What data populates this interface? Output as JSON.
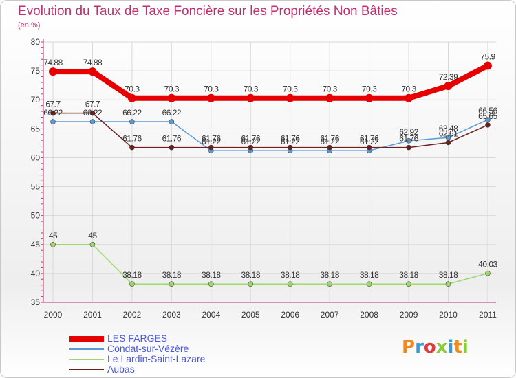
{
  "header": {
    "title": "Evolution du Taux de Taxe Foncière sur les Propriétés Non Bâties",
    "unit": "(en %)"
  },
  "logo": {
    "text": "Proxiti",
    "colors": [
      "#f08a1c",
      "#3a9ad8",
      "#e23a3a",
      "#8acb3a",
      "#3a9ad8",
      "#f08a1c",
      "#8acb3a"
    ]
  },
  "colors": {
    "title": "#c03070",
    "legend_text": "#4a5ad8",
    "axis": "#c03070",
    "grid": "#d8d8d8"
  },
  "chart_data": {
    "type": "line",
    "x": [
      "2000",
      "2001",
      "2002",
      "2003",
      "2004",
      "2005",
      "2006",
      "2007",
      "2008",
      "2009",
      "2010",
      "2011"
    ],
    "ylim": [
      35,
      80
    ],
    "yticks": [
      35,
      40,
      45,
      50,
      55,
      60,
      65,
      70,
      75,
      80
    ],
    "grid": true,
    "legend_position": "bottom-left",
    "series": [
      {
        "name": "LES FARGES",
        "color": "#e60000",
        "values": [
          74.88,
          74.88,
          70.3,
          70.3,
          70.3,
          70.3,
          70.3,
          70.3,
          70.3,
          70.3,
          72.39,
          75.9
        ],
        "labels": [
          "74.88",
          "74.88",
          "70.3",
          "70.3",
          "70.3",
          "70.3",
          "70.3",
          "70.3",
          "70.3",
          "70.3",
          "72.39",
          "75.9"
        ]
      },
      {
        "name": "Condat-sur-Vézère",
        "color": "#5a9bd5",
        "values": [
          66.22,
          66.22,
          66.22,
          66.22,
          61.22,
          61.22,
          61.22,
          61.22,
          61.22,
          62.92,
          63.48,
          66.56
        ],
        "labels": [
          "66.22",
          "66.22",
          "66.22",
          "66.22",
          "61.22",
          "61.22",
          "61.22",
          "61.22",
          "61.22",
          "62.92",
          "63.48",
          "66.56"
        ]
      },
      {
        "name": "Le Lardin-Saint-Lazare",
        "color": "#9dd86b",
        "values": [
          45,
          45,
          38.18,
          38.18,
          38.18,
          38.18,
          38.18,
          38.18,
          38.18,
          38.18,
          38.18,
          40.03
        ],
        "labels": [
          "45",
          "45",
          "38.18",
          "38.18",
          "38.18",
          "38.18",
          "38.18",
          "38.18",
          "38.18",
          "38.18",
          "38.18",
          "40.03"
        ]
      },
      {
        "name": "Aubas",
        "color": "#6b1f1f",
        "values": [
          67.7,
          67.7,
          61.76,
          61.76,
          61.76,
          61.76,
          61.76,
          61.76,
          61.76,
          61.76,
          62.61,
          65.65
        ],
        "labels": [
          "67.7",
          "67.7",
          "61.76",
          "61.76",
          "61.76",
          "61.76",
          "61.76",
          "61.76",
          "61.76",
          "61.76",
          "62.61",
          "65.65"
        ]
      }
    ]
  }
}
